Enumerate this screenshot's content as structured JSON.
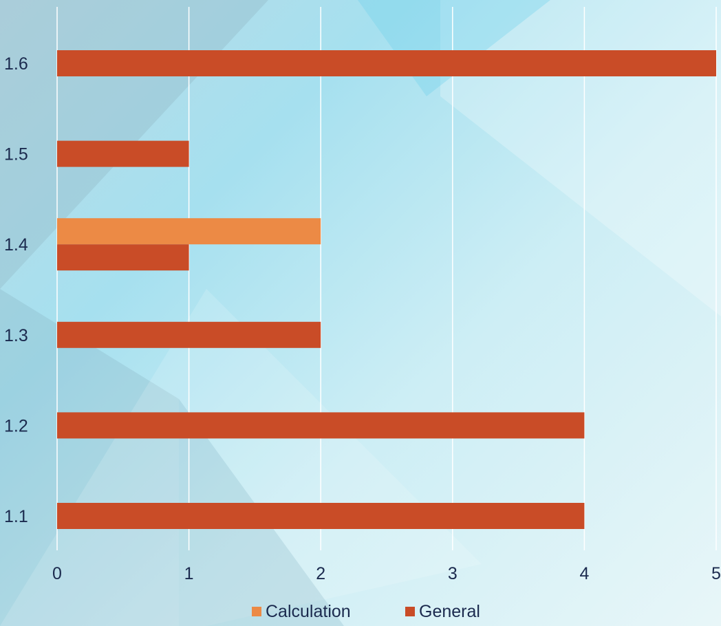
{
  "chart_data": {
    "type": "bar",
    "orientation": "horizontal",
    "categories": [
      "1.1",
      "1.2",
      "1.3",
      "1.4",
      "1.5",
      "1.6"
    ],
    "series": [
      {
        "name": "Calculation",
        "values": [
          null,
          null,
          null,
          2,
          null,
          null
        ],
        "color": "#ec8a45"
      },
      {
        "name": "General",
        "values": [
          4,
          4,
          2,
          1,
          1,
          5
        ],
        "color": "#c94c27"
      }
    ],
    "x_ticks": [
      "0",
      "1",
      "2",
      "3",
      "4",
      "5"
    ],
    "xlim": [
      0,
      5
    ],
    "grid": "vertical",
    "legend_position": "bottom",
    "title": "",
    "xlabel": "",
    "ylabel": ""
  }
}
